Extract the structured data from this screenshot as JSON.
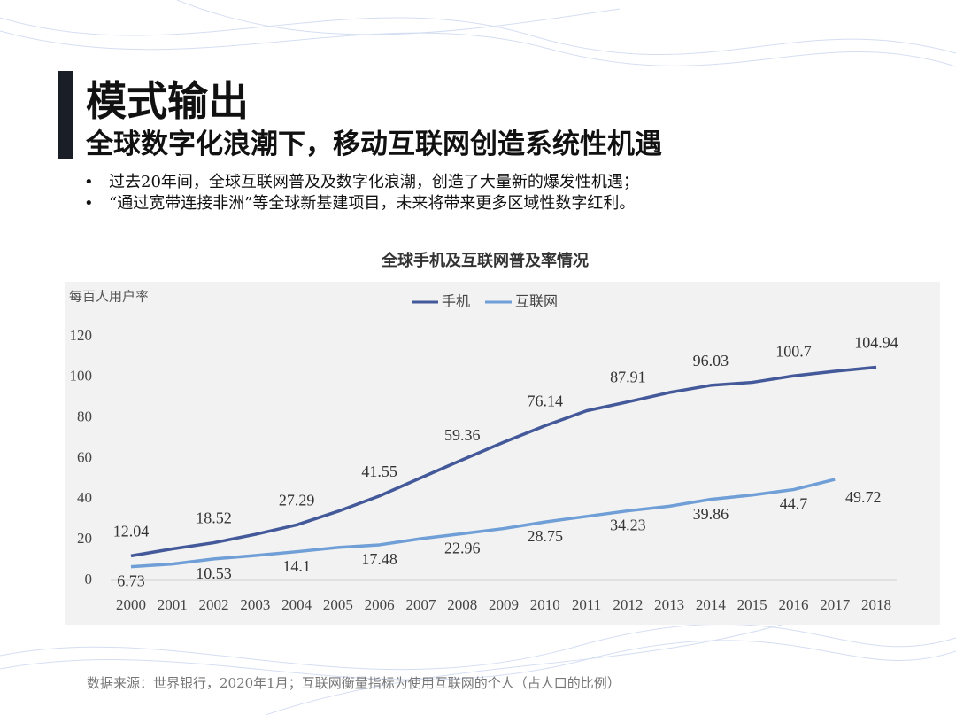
{
  "header": {
    "title": "模式输出",
    "subtitle": "全球数字化浪潮下，移动互联网创造系统性机遇"
  },
  "bullets": [
    "过去20年间，全球互联网普及及数字化浪潮，创造了大量新的爆发性机遇；",
    "“通过宽带连接非洲”等全球新基建项目，未来将带来更多区域性数字红利。"
  ],
  "chart_data": {
    "type": "line",
    "title": "全球手机及互联网普及率情况",
    "y_label": "每百人用户率",
    "categories": [
      "2000",
      "2001",
      "2002",
      "2003",
      "2004",
      "2005",
      "2006",
      "2007",
      "2008",
      "2009",
      "2010",
      "2011",
      "2012",
      "2013",
      "2014",
      "2015",
      "2016",
      "2017",
      "2018"
    ],
    "series": [
      {
        "name": "手机",
        "color": "#44599a",
        "values": [
          12.04,
          15.5,
          18.52,
          22.6,
          27.29,
          34,
          41.55,
          50.5,
          59.36,
          68,
          76.14,
          83.5,
          87.91,
          92.5,
          96.03,
          97.5,
          100.7,
          103,
          104.94
        ],
        "value_labels": [
          "12.04",
          null,
          "18.52",
          null,
          "27.29",
          null,
          "41.55",
          null,
          "59.36",
          null,
          "76.14",
          null,
          "87.91",
          null,
          "96.03",
          null,
          "100.7",
          null,
          "104.94"
        ]
      },
      {
        "name": "互联网",
        "color": "#6f9fd6",
        "values": [
          6.73,
          8,
          10.53,
          12.2,
          14.1,
          16.2,
          17.48,
          20.5,
          22.96,
          25.5,
          28.75,
          31.5,
          34.23,
          36.5,
          39.86,
          42,
          44.7,
          49.72,
          null
        ],
        "value_labels": [
          "6.73",
          null,
          "10.53",
          null,
          "14.1",
          null,
          "17.48",
          null,
          "22.96",
          null,
          "28.75",
          null,
          "34.23",
          null,
          "39.86",
          null,
          "44.7",
          "49.72",
          null
        ]
      }
    ],
    "ylim": [
      0,
      120
    ],
    "yticks": [
      0,
      20,
      40,
      60,
      80,
      100,
      120
    ],
    "legend": "top"
  },
  "footnote": "数据来源：世界银行，2020年1月；互联网衡量指标为使用互联网的个人（占人口的比例）"
}
